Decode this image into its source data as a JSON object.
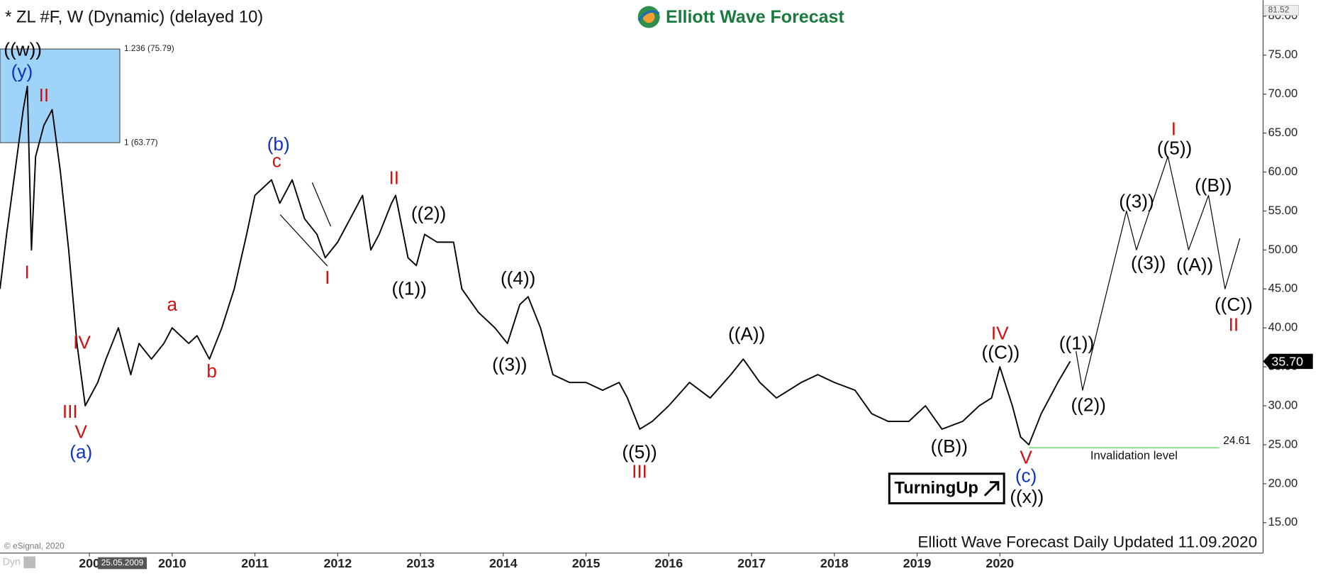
{
  "chart_data": {
    "type": "line",
    "title": "* ZL #F, W (Dynamic) (delayed 10)",
    "logo_text": "Elliott Wave Forecast",
    "footer": "Elliott Wave Forecast Daily Updated 11.09.2020",
    "copyright": "© eSignal, 2020",
    "corner_label": "Dyn",
    "cursor_date": "25.05.2009",
    "badge": "TurningUp",
    "xlim": [
      2007.92,
      2023.18
    ],
    "ylim": [
      11.1,
      81.52
    ],
    "xticks": [
      {
        "value": 2009,
        "label": "200"
      },
      2010,
      2011,
      2012,
      2013,
      2014,
      2015,
      2016,
      2017,
      2018,
      2019,
      2020
    ],
    "yticks": [
      {
        "value": 15,
        "label": "15.00"
      },
      {
        "value": 20,
        "label": "20.00"
      },
      {
        "value": 25,
        "label": "25.00"
      },
      {
        "value": 30,
        "label": "30.00"
      },
      {
        "value": 35,
        "label": "35.00"
      },
      {
        "value": 40,
        "label": "40.00"
      },
      {
        "value": 45,
        "label": "45.00"
      },
      {
        "value": 50,
        "label": "50.00"
      },
      {
        "value": 55,
        "label": "55.00"
      },
      {
        "value": 60,
        "label": "60.00"
      },
      {
        "value": 65,
        "label": "65.00"
      },
      {
        "value": 70,
        "label": "70.00"
      },
      {
        "value": 75,
        "label": "75.00"
      },
      {
        "value": 80,
        "label": "80.00"
      }
    ],
    "top_value": {
      "value": 81.52,
      "label": "81.52"
    },
    "last_price": {
      "value": 35.7,
      "label": "35.70"
    },
    "series": [
      {
        "color": "#000000",
        "x": [
          2007.92,
          2008.0,
          2008.1,
          2008.2,
          2008.25,
          2008.3,
          2008.35,
          2008.45,
          2008.55,
          2008.65,
          2008.75,
          2008.85,
          2008.95,
          2009.1,
          2009.2,
          2009.35,
          2009.5,
          2009.6,
          2009.75,
          2009.9,
          2010.0,
          2010.2,
          2010.3,
          2010.45,
          2010.6,
          2010.75,
          2010.9,
          2011.0,
          2011.2,
          2011.3,
          2011.45,
          2011.6,
          2011.75,
          2011.85,
          2012.0,
          2012.2,
          2012.3,
          2012.4,
          2012.5,
          2012.65,
          2012.7,
          2012.85,
          2012.95,
          2013.05,
          2013.2,
          2013.4,
          2013.5,
          2013.7,
          2013.9,
          2014.05,
          2014.2,
          2014.3,
          2014.45,
          2014.6,
          2014.8,
          2015.0,
          2015.2,
          2015.4,
          2015.5,
          2015.65,
          2015.8,
          2016.0,
          2016.25,
          2016.5,
          2016.75,
          2016.9,
          2017.1,
          2017.3,
          2017.6,
          2017.8,
          2018.0,
          2018.25,
          2018.45,
          2018.65,
          2018.9,
          2019.1,
          2019.3,
          2019.55,
          2019.75,
          2019.9,
          2020.0,
          2020.15,
          2020.25,
          2020.35,
          2020.5,
          2020.7,
          2020.85
        ],
        "values": [
          45,
          52,
          60,
          68,
          71,
          50,
          62,
          66,
          68,
          60,
          50,
          38,
          30,
          33,
          36,
          40,
          34,
          38,
          36,
          38,
          40,
          38,
          39,
          36,
          40,
          45,
          52,
          57,
          59,
          56,
          59,
          54,
          52,
          49,
          51,
          55,
          57,
          50,
          52,
          56,
          57,
          49,
          48,
          52,
          51,
          51,
          45,
          42,
          40,
          38,
          43,
          44,
          40,
          34,
          33,
          33,
          32,
          33,
          31,
          27,
          28,
          30,
          33,
          31,
          34,
          36,
          33,
          31,
          33,
          34,
          33,
          32,
          29,
          28,
          28,
          30,
          27,
          28,
          30,
          31,
          35,
          30,
          26,
          25,
          29,
          33,
          35.7
        ]
      },
      {
        "color": "#000000",
        "x": [
          2020.92,
          2021.0,
          2021.53,
          2021.65,
          2022.03,
          2022.28,
          2022.52,
          2022.72,
          2022.9
        ],
        "values": [
          37,
          32,
          55,
          50,
          62,
          50,
          57,
          45,
          51.5
        ]
      }
    ],
    "fib_zone": {
      "color": "#9fd3f7",
      "levels": [
        {
          "value": 75.79,
          "label": "1.236 (75.79)"
        },
        {
          "value": 63.77,
          "label": "1 (63.77)"
        }
      ]
    },
    "invalidation": {
      "value": 24.61,
      "label": "24.61",
      "text": "Invalidation level",
      "color": "#7fd97f"
    },
    "annotations": [
      {
        "text": "((w))",
        "color": "#000000"
      },
      {
        "text": "(y)",
        "color": "#1030c0"
      },
      {
        "text": "II",
        "color": "#d01010"
      },
      {
        "text": "I",
        "color": "#d01010"
      },
      {
        "text": "IV",
        "color": "#d01010"
      },
      {
        "text": "III",
        "color": "#d01010"
      },
      {
        "text": "V",
        "color": "#d01010"
      },
      {
        "text": "(a)",
        "color": "#1030c0"
      },
      {
        "text": "a",
        "color": "#d01010"
      },
      {
        "text": "b",
        "color": "#d01010"
      },
      {
        "text": "(b)",
        "color": "#1030c0"
      },
      {
        "text": "c",
        "color": "#d01010"
      },
      {
        "text": "I",
        "color": "#d01010"
      },
      {
        "text": "II",
        "color": "#d01010"
      },
      {
        "text": "((2))",
        "color": "#000000"
      },
      {
        "text": "((1))",
        "color": "#000000"
      },
      {
        "text": "((4))",
        "color": "#000000"
      },
      {
        "text": "((3))",
        "color": "#000000"
      },
      {
        "text": "((5))",
        "color": "#000000"
      },
      {
        "text": "III",
        "color": "#d01010"
      },
      {
        "text": "((A))",
        "color": "#000000"
      },
      {
        "text": "((B))",
        "color": "#000000"
      },
      {
        "text": "IV",
        "color": "#d01010"
      },
      {
        "text": "((C))",
        "color": "#000000"
      },
      {
        "text": "V",
        "color": "#d01010"
      },
      {
        "text": "(c)",
        "color": "#1030c0"
      },
      {
        "text": "((x))",
        "color": "#000000"
      },
      {
        "text": "((1))",
        "color": "#000000"
      },
      {
        "text": "((2))",
        "color": "#000000"
      },
      {
        "text": "((3))",
        "color": "#000000"
      },
      {
        "text": "((3))",
        "color": "#000000"
      },
      {
        "text": "I",
        "color": "#d01010"
      },
      {
        "text": "((5))",
        "color": "#000000"
      },
      {
        "text": "((B))",
        "color": "#000000"
      },
      {
        "text": "((A))",
        "color": "#000000"
      },
      {
        "text": "((C))",
        "color": "#000000"
      },
      {
        "text": "II",
        "color": "#d01010"
      }
    ]
  }
}
